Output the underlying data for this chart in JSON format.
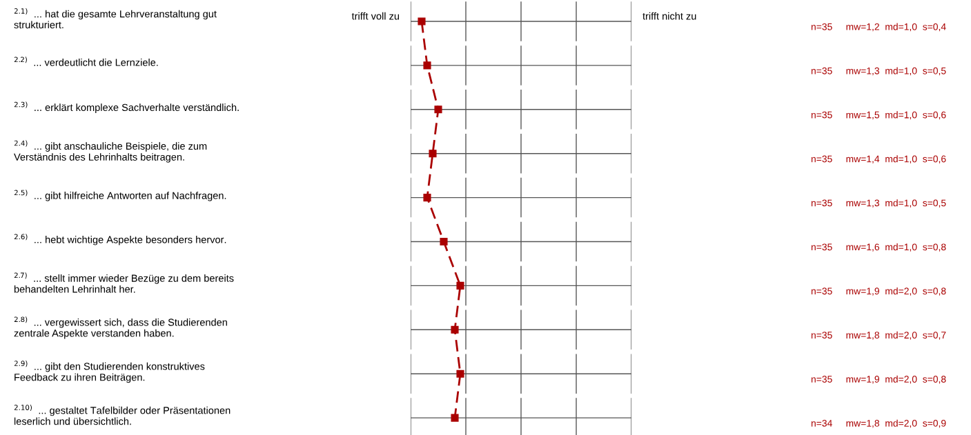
{
  "chart_data": {
    "type": "line",
    "orientation": "horizontal",
    "categories": [
      "$^{2.1)}$  ... hat die gesamte Lehrveranstaltung gut\nstrukturiert.",
      "$^{2.2)}$  ... verdeutlicht die Lernziele.",
      "$^{2.3)}$  ... erklärt komplexe Sachverhalte verständlich.",
      "$^{2.4)}$  ... gibt anschauliche Beispiele, die zum\nVerständnis des Lehrinhalts beitragen.",
      "$^{2.5)}$  ... gibt hilfreiche Antworten auf Nachfragen.",
      "$^{2.6)}$  ... hebt wichtige Aspekte besonders hervor.",
      "$^{2.7)}$  ... stellt immer wieder Bezüge zu dem bereits\nbehandelten Lehrinhalt her.",
      "$^{2.8)}$  ... vergewissert sich, dass die Studierenden\nzentrale Aspekte verstanden haben.",
      "$^{2.9)}$  ... gibt den Studierenden konstruktives\nFeedback zu ihren Beiträgen.",
      "$^{2.10)}$  ... gestaltet Tafelbilder oder Präsentationen\nleserlich und übersichtlich."
    ],
    "series": [
      {
        "color": "#aa0000",
        "values": [
          1.2,
          1.3,
          1.5,
          1.4,
          1.3,
          1.6,
          1.9,
          1.8,
          1.9,
          1.8
        ],
        "value_labels": [
          "n=35     mw=1,2  md=1,0  s=0,4",
          "n=35     mw=1,3  md=1,0  s=0,5",
          "n=35     mw=1,5  md=1,0  s=0,6",
          "n=35     mw=1,4  md=1,0  s=0,6",
          "n=35     mw=1,3  md=1,0  s=0,5",
          "n=35     mw=1,6  md=1,0  s=0,8",
          "n=35     mw=1,9  md=2,0  s=0,8",
          "n=35     mw=1,8  md=2,0  s=0,7",
          "n=35     mw=1,9  md=2,0  s=0,8",
          "n=34     mw=1,8  md=2,0  s=0,9"
        ]
      }
    ],
    "xlim": [
      1,
      5
    ],
    "grid": true,
    "marker": "square",
    "line_style": "dashed",
    "legend": false,
    "annotations": [
      "trifft voll zu",
      "trifft nicht zu"
    ]
  }
}
